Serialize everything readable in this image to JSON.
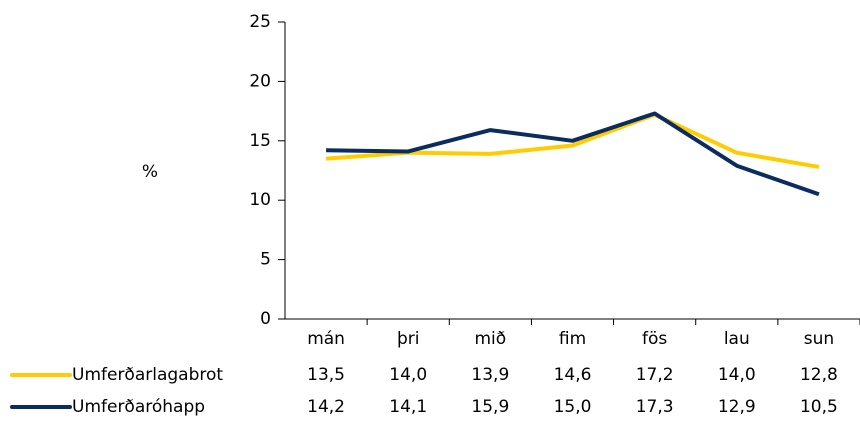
{
  "chart_data": {
    "type": "line",
    "y_label": "%",
    "categories": [
      "mán",
      "þri",
      "mið",
      "fim",
      "fös",
      "lau",
      "sun"
    ],
    "series": [
      {
        "name": "Umferðarlagabrot",
        "color": "#ffcc00",
        "values": [
          13.5,
          14.0,
          13.9,
          14.6,
          17.2,
          14.0,
          12.8
        ],
        "value_labels": [
          "13,5",
          "14,0",
          "13,9",
          "14,6",
          "17,2",
          "14,0",
          "12,8"
        ]
      },
      {
        "name": "Umferðaróhapp",
        "color": "#0b2c5e",
        "values": [
          14.2,
          14.1,
          15.9,
          15.0,
          17.3,
          12.9,
          10.5
        ],
        "value_labels": [
          "14,2",
          "14,1",
          "15,9",
          "15,0",
          "17,3",
          "12,9",
          "10,5"
        ]
      }
    ],
    "ylim": [
      0,
      25
    ],
    "yticks": [
      0,
      5,
      10,
      15,
      20,
      25
    ],
    "grid": false
  }
}
